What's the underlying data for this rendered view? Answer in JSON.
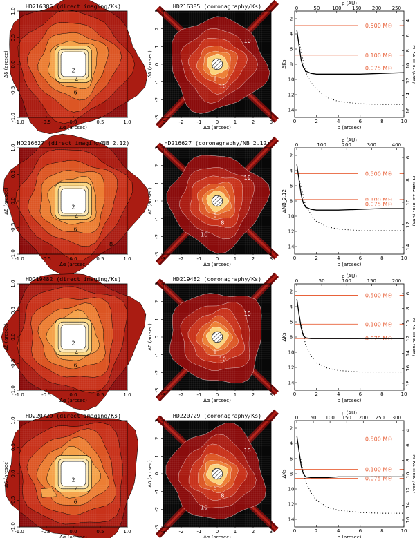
{
  "figure": {
    "colors": {
      "levels": [
        "#8a0c0c",
        "#aa1c12",
        "#c8321a",
        "#dc5624",
        "#ec7e34",
        "#f5a24a",
        "#fbd37c",
        "#ffffff"
      ],
      "mass_line": "#e8623a",
      "frame": "#000000",
      "grid_dark": "#080808"
    },
    "rows": [
      {
        "direct": {
          "title": "HD216385 (direct imaging/Ks)",
          "xlabel": "Δα (arcsec)",
          "ylabel": "Δδ (arcsec)",
          "x_ticks": [
            "-1.0",
            "-0.5",
            "0.0",
            "0.5",
            "1.0"
          ],
          "y_ticks": [
            "-1.0",
            "-0.5",
            "0.0",
            "0.5",
            "1.0"
          ],
          "contour_labels": [
            "2",
            "4",
            "6"
          ]
        },
        "coro": {
          "title": "HD216385 (coronagraphy/Ks)",
          "xlabel": "Δα (arcsec)",
          "ylabel": "Δδ (arcsec)",
          "x_ticks": [
            "-3",
            "-2",
            "-1",
            "0",
            "1",
            "2",
            "3"
          ],
          "y_ticks": [
            "-3",
            "-2",
            "-1",
            "0",
            "1",
            "2",
            "3"
          ],
          "contour_labels": [
            "6",
            "10",
            "10"
          ]
        },
        "detect": {
          "xlabel": "ρ (arcsec)",
          "top_label": "ρ (AU)",
          "ylabel_left": "ΔKs",
          "ylabel_right": "M_Ks limit (dex)",
          "x_ticks": [
            "0",
            "2",
            "4",
            "6",
            "8",
            "10"
          ],
          "top_ticks": [
            "0",
            "50",
            "100",
            "150",
            "200",
            "250"
          ],
          "left_ticks": [
            "2",
            "4",
            "6",
            "8",
            "10",
            "12",
            "14"
          ],
          "right_ticks": [
            "4",
            "6",
            "8",
            "10",
            "12",
            "14",
            "16"
          ],
          "mass_lines": [
            {
              "label": "0.500 M☉",
              "delta_mag": 2.9
            },
            {
              "label": "0.100 M☉",
              "delta_mag": 6.8
            },
            {
              "label": "0.075 M☉",
              "delta_mag": 8.5
            }
          ]
        }
      },
      {
        "direct": {
          "title": "HD216627 (direct imaging/NB_2.12)",
          "xlabel": "Δα (arcsec)",
          "ylabel": "Δδ (arcsec)",
          "x_ticks": [
            "-1.0",
            "-0.5",
            "0.0",
            "0.5",
            "1.0"
          ],
          "y_ticks": [
            "-1.0",
            "-0.5",
            "0.0",
            "0.5",
            "1.0"
          ],
          "contour_labels": [
            "2",
            "4",
            "6",
            "8"
          ]
        },
        "coro": {
          "title": "HD216627 (coronagraphy/NB_2.12)",
          "xlabel": "Δα (arcsec)",
          "ylabel": "Δδ (arcsec)",
          "x_ticks": [
            "-3",
            "-2",
            "-1",
            "0",
            "1",
            "2",
            "3"
          ],
          "y_ticks": [
            "-3",
            "-2",
            "-1",
            "0",
            "1",
            "2",
            "3"
          ],
          "contour_labels": [
            "6",
            "8",
            "10",
            "10"
          ]
        },
        "detect": {
          "xlabel": "ρ (arcsec)",
          "top_label": "ρ (AU)",
          "ylabel_left": "ΔNB_2.12",
          "ylabel_right": "M_NB2.12 limit (dex)",
          "x_ticks": [
            "0",
            "2",
            "4",
            "6",
            "8",
            "10"
          ],
          "top_ticks": [
            "0",
            "100",
            "200",
            "300",
            "400"
          ],
          "left_ticks": [
            "2",
            "4",
            "6",
            "8",
            "10",
            "12",
            "14"
          ],
          "right_ticks": [
            "6",
            "8",
            "10",
            "12",
            "14"
          ],
          "mass_lines": [
            {
              "label": "0.500 M☉",
              "delta_mag": 4.4
            },
            {
              "label": "0.100 M☉",
              "delta_mag": 7.8
            },
            {
              "label": "0.075 M☉",
              "delta_mag": 8.4
            }
          ]
        }
      },
      {
        "direct": {
          "title": "HD219482 (direct imaging/Ks)",
          "xlabel": "Δα (arcsec)",
          "ylabel": "Δδ (arcsec)",
          "x_ticks": [
            "-1.0",
            "-0.5",
            "0.0",
            "0.5",
            "1.0"
          ],
          "y_ticks": [
            "-1.0",
            "-0.5",
            "0.0",
            "0.5",
            "1.0"
          ],
          "contour_labels": [
            "2",
            "4",
            "6"
          ]
        },
        "coro": {
          "title": "HD219482 (coronagraphy/Ks)",
          "xlabel": "Δα (arcsec)",
          "ylabel": "Δδ (arcsec)",
          "x_ticks": [
            "-3",
            "-2",
            "-1",
            "0",
            "1",
            "2",
            "3"
          ],
          "y_ticks": [
            "-3",
            "-2",
            "-1",
            "0",
            "1",
            "2",
            "3"
          ],
          "contour_labels": [
            "6",
            "10",
            "10"
          ]
        },
        "detect": {
          "xlabel": "ρ (arcsec)",
          "top_label": "ρ (AU)",
          "ylabel_left": "ΔKs",
          "ylabel_right": "M_Ks limit (dex)",
          "x_ticks": [
            "0",
            "2",
            "4",
            "6",
            "8",
            "10"
          ],
          "top_ticks": [
            "0",
            "50",
            "100",
            "150",
            "200"
          ],
          "left_ticks": [
            "2",
            "4",
            "6",
            "8",
            "10",
            "12",
            "14"
          ],
          "right_ticks": [
            "6",
            "8",
            "10",
            "12",
            "14",
            "16",
            "18"
          ],
          "mass_lines": [
            {
              "label": "0.500 M☉",
              "delta_mag": 2.5
            },
            {
              "label": "0.100 M☉",
              "delta_mag": 6.3
            },
            {
              "label": "0.075 M☉",
              "delta_mag": 8.2
            }
          ]
        }
      },
      {
        "direct": {
          "title": "HD220729 (direct imaging/Ks)",
          "xlabel": "Δα (arcsec)",
          "ylabel": "Δδ (arcsec)",
          "x_ticks": [
            "-1.0",
            "-0.5",
            "0.0",
            "0.5",
            "1.0"
          ],
          "y_ticks": [
            "-1.0",
            "-0.5",
            "0.0",
            "0.5",
            "1.0"
          ],
          "contour_labels": [
            "2",
            "4",
            "6"
          ]
        },
        "coro": {
          "title": "HD220729 (coronagraphy/Ks)",
          "xlabel": "Δα (arcsec)",
          "ylabel": "Δδ (arcsec)",
          "x_ticks": [
            "-3",
            "-2",
            "-1",
            "0",
            "1",
            "2",
            "3"
          ],
          "y_ticks": [
            "-3",
            "-2",
            "-1",
            "0",
            "1",
            "2",
            "3"
          ],
          "contour_labels": [
            "6",
            "8",
            "10",
            "10"
          ]
        },
        "detect": {
          "xlabel": "ρ (arcsec)",
          "top_label": "ρ (AU)",
          "ylabel_left": "ΔKs",
          "ylabel_right": "M_Ks limit (dex)",
          "x_ticks": [
            "0",
            "2",
            "4",
            "6",
            "8",
            "10"
          ],
          "top_ticks": [
            "0",
            "50",
            "100",
            "150",
            "200",
            "250",
            "300"
          ],
          "left_ticks": [
            "2",
            "4",
            "6",
            "8",
            "10",
            "12",
            "14"
          ],
          "right_ticks": [
            "4",
            "6",
            "8",
            "10",
            "12",
            "14",
            "16"
          ],
          "mass_lines": [
            {
              "label": "0.500 M☉",
              "delta_mag": 3.4
            },
            {
              "label": "0.100 M☉",
              "delta_mag": 7.4
            },
            {
              "label": "0.075 M☉",
              "delta_mag": 8.6
            }
          ]
        }
      }
    ]
  },
  "chart_data": [
    {
      "type": "line",
      "title": "",
      "xlabel": "ρ (arcsec)",
      "ylabel": "ΔKs",
      "xlim": [
        0,
        10
      ],
      "ylim": [
        15,
        1
      ],
      "series": [
        {
          "name": "",
          "style": "solid",
          "x": [
            0.2,
            0.4,
            0.6,
            0.8,
            1.0,
            1.5,
            2,
            3,
            4,
            6,
            8,
            10
          ],
          "y": [
            3.5,
            5.5,
            7.5,
            8.4,
            8.9,
            9.2,
            9.3,
            9.3,
            9.3,
            9.3,
            9.2,
            9.1
          ]
        },
        {
          "name": "",
          "style": "dotted",
          "x": [
            0.4,
            1.0,
            1.5,
            2,
            3,
            4,
            6,
            8,
            10
          ],
          "y": [
            5.0,
            9.0,
            10.4,
            11.3,
            12.4,
            12.9,
            13.2,
            13.3,
            13.3
          ]
        }
      ],
      "mass_limits": [
        {
          "label": "0.500 M☉",
          "value": 2.9
        },
        {
          "label": "0.100 M☉",
          "value": 6.8
        },
        {
          "label": "0.075 M☉",
          "value": 8.5
        }
      ]
    },
    {
      "type": "line",
      "title": "",
      "xlabel": "ρ (arcsec)",
      "ylabel": "ΔNB_2.12",
      "xlim": [
        0,
        10
      ],
      "ylim": [
        15,
        1
      ],
      "series": [
        {
          "name": "",
          "style": "solid",
          "x": [
            0.2,
            0.4,
            0.6,
            0.8,
            1.0,
            1.5,
            2,
            3,
            4,
            6,
            8,
            10
          ],
          "y": [
            3.2,
            5.2,
            7.2,
            8.3,
            8.8,
            9.1,
            9.2,
            9.2,
            9.2,
            9.1,
            9.0,
            9.0
          ]
        },
        {
          "name": "",
          "style": "dotted",
          "x": [
            0.4,
            1.0,
            1.5,
            2,
            3,
            4,
            6,
            8,
            10
          ],
          "y": [
            5.0,
            8.6,
            9.8,
            10.7,
            11.4,
            11.7,
            11.9,
            11.9,
            11.9
          ]
        }
      ],
      "mass_limits": [
        {
          "label": "0.500 M☉",
          "value": 4.4
        },
        {
          "label": "0.100 M☉",
          "value": 7.8
        },
        {
          "label": "0.075 M☉",
          "value": 8.4
        }
      ]
    },
    {
      "type": "line",
      "title": "",
      "xlabel": "ρ (arcsec)",
      "ylabel": "ΔKs",
      "xlim": [
        0,
        10
      ],
      "ylim": [
        15,
        1
      ],
      "series": [
        {
          "name": "",
          "style": "solid",
          "x": [
            0.2,
            0.4,
            0.6,
            0.8,
            1.0,
            1.5,
            2,
            3,
            4,
            6,
            8,
            10
          ],
          "y": [
            3.0,
            5.0,
            6.8,
            7.8,
            8.1,
            8.2,
            8.2,
            8.2,
            8.2,
            8.2,
            8.2,
            8.2
          ]
        },
        {
          "name": "",
          "style": "dotted",
          "x": [
            0.4,
            1.0,
            1.5,
            2,
            3,
            4,
            6,
            8,
            10
          ],
          "y": [
            5.0,
            9.0,
            10.5,
            11.4,
            12.1,
            12.4,
            12.6,
            12.6,
            12.6
          ]
        }
      ],
      "mass_limits": [
        {
          "label": "0.500 M☉",
          "value": 2.5
        },
        {
          "label": "0.100 M☉",
          "value": 6.3
        },
        {
          "label": "0.075 M☉",
          "value": 8.2
        }
      ]
    },
    {
      "type": "line",
      "title": "",
      "xlabel": "ρ (arcsec)",
      "ylabel": "ΔKs",
      "xlim": [
        0,
        10
      ],
      "ylim": [
        15,
        1
      ],
      "series": [
        {
          "name": "",
          "style": "solid",
          "x": [
            0.2,
            0.4,
            0.6,
            0.8,
            1.0,
            1.5,
            2,
            3,
            4,
            6,
            8,
            10
          ],
          "y": [
            3.0,
            5.0,
            7.0,
            8.0,
            8.4,
            8.5,
            8.5,
            8.5,
            8.4,
            8.4,
            8.4,
            8.4
          ]
        },
        {
          "name": "",
          "style": "dotted",
          "x": [
            0.4,
            1.0,
            1.5,
            2,
            3,
            4,
            6,
            8,
            10
          ],
          "y": [
            5.0,
            9.0,
            10.5,
            11.5,
            12.4,
            12.8,
            13.1,
            13.2,
            13.2
          ]
        }
      ],
      "mass_limits": [
        {
          "label": "0.500 M☉",
          "value": 3.4
        },
        {
          "label": "0.100 M☉",
          "value": 7.4
        },
        {
          "label": "0.075 M☉",
          "value": 8.6
        }
      ]
    }
  ]
}
